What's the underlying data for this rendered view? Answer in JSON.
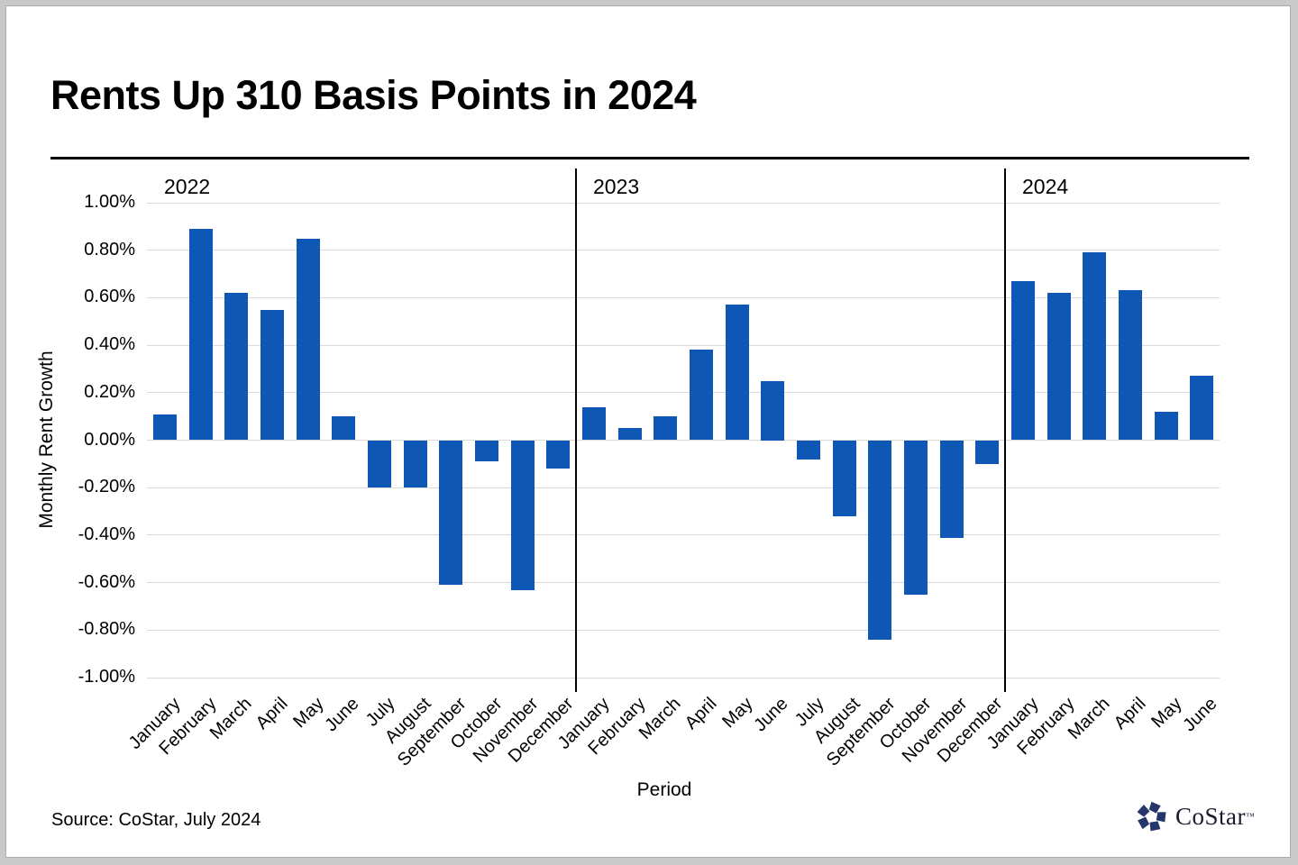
{
  "page": {
    "source": "Source: CoStar, July 2024",
    "logo_text": "CoStar",
    "logo_tm": "™"
  },
  "chart_data": {
    "type": "bar",
    "title": "Rents Up 310 Basis Points in 2024",
    "xlabel": "Period",
    "ylabel": "Monthly Rent Growth",
    "ylim": [
      -1.0,
      1.0
    ],
    "ytick_step_pct": 0.2,
    "ytick_labels": [
      "1.00%",
      "0.80%",
      "0.60%",
      "0.40%",
      "0.20%",
      "0.00%",
      "-0.20%",
      "-0.40%",
      "-0.60%",
      "-0.80%",
      "-1.00%"
    ],
    "grid": "horizontal",
    "legend_position": "none",
    "bar_color": "#0F57B4",
    "grid_color": "#D9D9D9",
    "value_unit": "percent_monthly_rent_growth",
    "groups": [
      {
        "year": "2022",
        "months": [
          "January",
          "February",
          "March",
          "April",
          "May",
          "June",
          "July",
          "August",
          "September",
          "October",
          "November",
          "December"
        ],
        "values": [
          0.11,
          0.89,
          0.62,
          0.55,
          0.85,
          0.1,
          -0.2,
          -0.2,
          -0.61,
          -0.09,
          -0.63,
          -0.12
        ]
      },
      {
        "year": "2023",
        "months": [
          "January",
          "February",
          "March",
          "April",
          "May",
          "June",
          "July",
          "August",
          "September",
          "October",
          "November",
          "December"
        ],
        "values": [
          0.14,
          0.05,
          0.1,
          0.38,
          0.57,
          0.25,
          -0.08,
          -0.32,
          -0.84,
          -0.65,
          -0.41,
          -0.1
        ]
      },
      {
        "year": "2024",
        "months": [
          "January",
          "February",
          "March",
          "April",
          "May",
          "June"
        ],
        "values": [
          0.67,
          0.62,
          0.79,
          0.63,
          0.12,
          0.27
        ]
      }
    ]
  }
}
